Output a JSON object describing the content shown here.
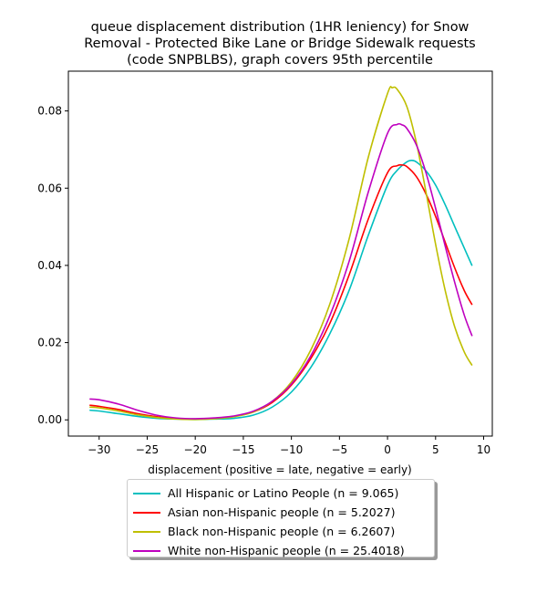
{
  "chart_data": {
    "type": "line",
    "title_lines": [
      "queue displacement distribution (1HR leniency) for Snow",
      "Removal - Protected Bike Lane or Bridge Sidewalk  requests",
      "(code SNPBLBS), graph covers 95th percentile"
    ],
    "xlabel": "displacement (positive = late, negative = early)",
    "ylabel": "",
    "xlim": [
      -33.2,
      10.9
    ],
    "ylim": [
      -0.0042,
      0.0903
    ],
    "xticks": [
      -30,
      -25,
      -20,
      -15,
      -10,
      -5,
      0,
      5,
      10
    ],
    "yticks": [
      0.0,
      0.02,
      0.04,
      0.06,
      0.08
    ],
    "ytick_labels": [
      "0.00",
      "0.02",
      "0.04",
      "0.06",
      "0.08"
    ],
    "grid": false,
    "legend_position": "below",
    "series": [
      {
        "name": "All Hispanic or Latino People (n = 9.065)",
        "color": "#00bfbf",
        "x": [
          -31,
          -30,
          -28,
          -26,
          -24,
          -22,
          -20,
          -18,
          -16,
          -14,
          -12,
          -10,
          -8,
          -6,
          -4,
          -2,
          0,
          1,
          2,
          2.5,
          3,
          4,
          5,
          6,
          7,
          8,
          8.8
        ],
        "y": [
          0.0025,
          0.0023,
          0.0016,
          0.0009,
          0.0004,
          0.0002,
          0.0001,
          0.0002,
          0.0004,
          0.0012,
          0.0033,
          0.0072,
          0.0135,
          0.0223,
          0.0335,
          0.0478,
          0.0608,
          0.0646,
          0.0668,
          0.0672,
          0.0668,
          0.0645,
          0.0608,
          0.0557,
          0.05,
          0.0444,
          0.0399
        ]
      },
      {
        "name": "Asian non-Hispanic people (n = 5.2027)",
        "color": "#ff0000",
        "x": [
          -31,
          -30,
          -28,
          -26,
          -24,
          -22,
          -20,
          -18,
          -16,
          -14,
          -12,
          -10,
          -8,
          -6,
          -4,
          -2,
          0,
          1,
          1.5,
          2,
          3,
          4,
          5,
          6,
          7,
          8,
          8.8
        ],
        "y": [
          0.0038,
          0.0035,
          0.0027,
          0.0016,
          0.0008,
          0.0003,
          0.0002,
          0.0004,
          0.0009,
          0.002,
          0.0045,
          0.009,
          0.0158,
          0.025,
          0.0375,
          0.052,
          0.064,
          0.0658,
          0.066,
          0.0656,
          0.063,
          0.0585,
          0.0527,
          0.046,
          0.0393,
          0.0334,
          0.0298
        ]
      },
      {
        "name": "Black non-Hispanic people (n = 6.2607)",
        "color": "#bfbf00",
        "x": [
          -31,
          -30,
          -28,
          -26,
          -24,
          -22,
          -20,
          -18,
          -16,
          -14,
          -12,
          -10,
          -8,
          -6,
          -4,
          -2,
          0,
          0.5,
          1,
          2,
          3,
          4,
          5,
          6,
          7,
          8,
          8.8
        ],
        "y": [
          0.0033,
          0.0031,
          0.0023,
          0.0013,
          0.0006,
          0.0002,
          0.0001,
          0.0003,
          0.0008,
          0.002,
          0.0048,
          0.0098,
          0.018,
          0.03,
          0.0468,
          0.068,
          0.0845,
          0.086,
          0.0856,
          0.0812,
          0.0718,
          0.059,
          0.0455,
          0.0335,
          0.024,
          0.0175,
          0.0141
        ]
      },
      {
        "name": "White non-Hispanic people (n = 25.4018)",
        "color": "#bf00bf",
        "x": [
          -31,
          -30,
          -28,
          -26,
          -24,
          -22,
          -20,
          -18,
          -16,
          -14,
          -12,
          -10,
          -8,
          -6,
          -4,
          -2,
          0,
          1,
          1.5,
          2,
          3,
          4,
          5,
          6,
          7,
          8,
          8.8
        ],
        "y": [
          0.0054,
          0.0052,
          0.0041,
          0.0025,
          0.0012,
          0.0005,
          0.0003,
          0.0005,
          0.001,
          0.0022,
          0.0048,
          0.0093,
          0.0165,
          0.027,
          0.041,
          0.059,
          0.0742,
          0.0765,
          0.0764,
          0.0755,
          0.0712,
          0.064,
          0.0548,
          0.045,
          0.0355,
          0.027,
          0.0217
        ]
      }
    ]
  }
}
